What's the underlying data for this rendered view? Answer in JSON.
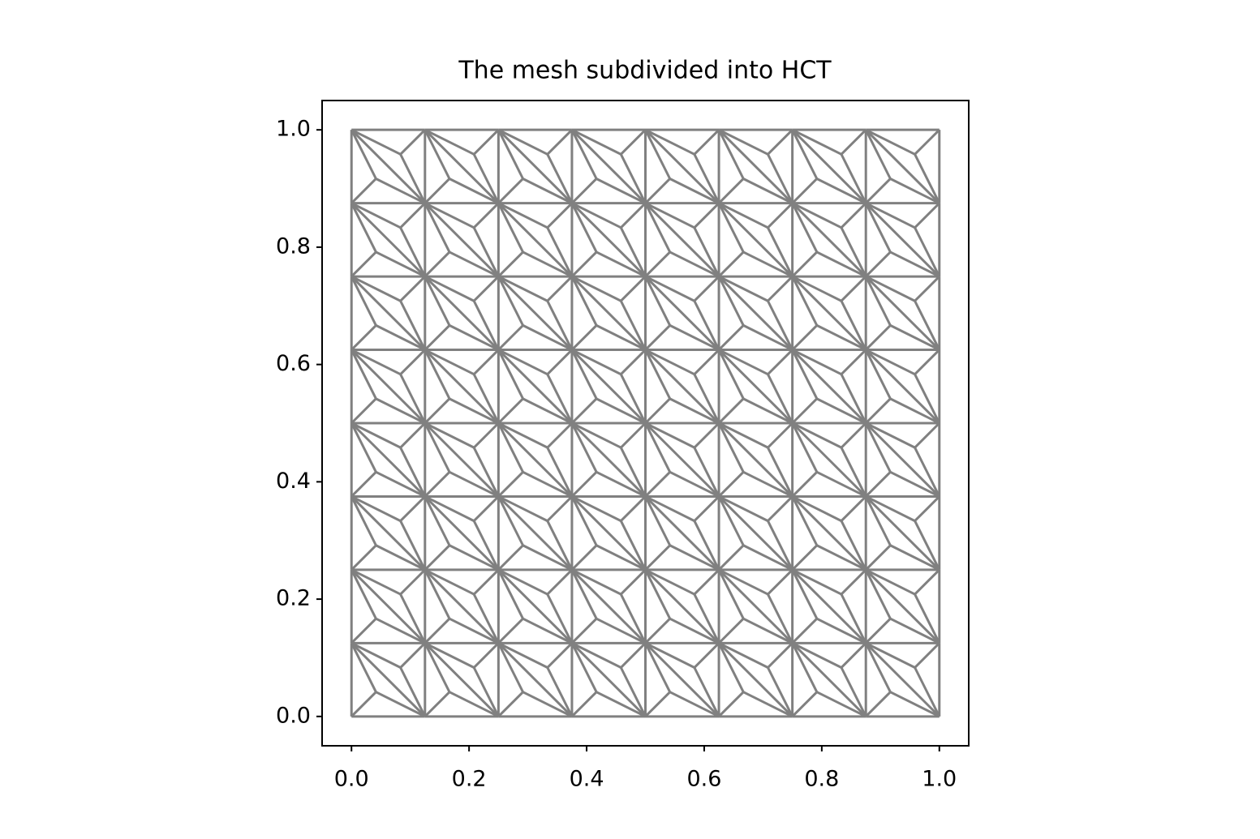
{
  "chart_data": {
    "type": "hct_mesh",
    "title": "The mesh subdivided into HCT",
    "x": [
      0,
      0.125,
      0.25,
      0.375,
      0.5,
      0.625,
      0.75,
      0.875,
      1
    ],
    "y": [
      0,
      0.125,
      0.25,
      0.375,
      0.5,
      0.625,
      0.75,
      0.875,
      1
    ],
    "color": "#808080",
    "xlim": [
      -0.05,
      1.05
    ],
    "ylim": [
      -0.05,
      1.05
    ],
    "xticks": [
      {
        "value": 0,
        "label": "0.0"
      },
      0.2,
      0.4,
      0.6,
      0.8,
      {
        "value": 1,
        "label": "1.0"
      }
    ],
    "yticks": [
      {
        "value": 0,
        "label": "0.0"
      },
      0.2,
      0.4,
      0.6,
      0.8,
      {
        "value": 1,
        "label": "1.0"
      }
    ]
  }
}
